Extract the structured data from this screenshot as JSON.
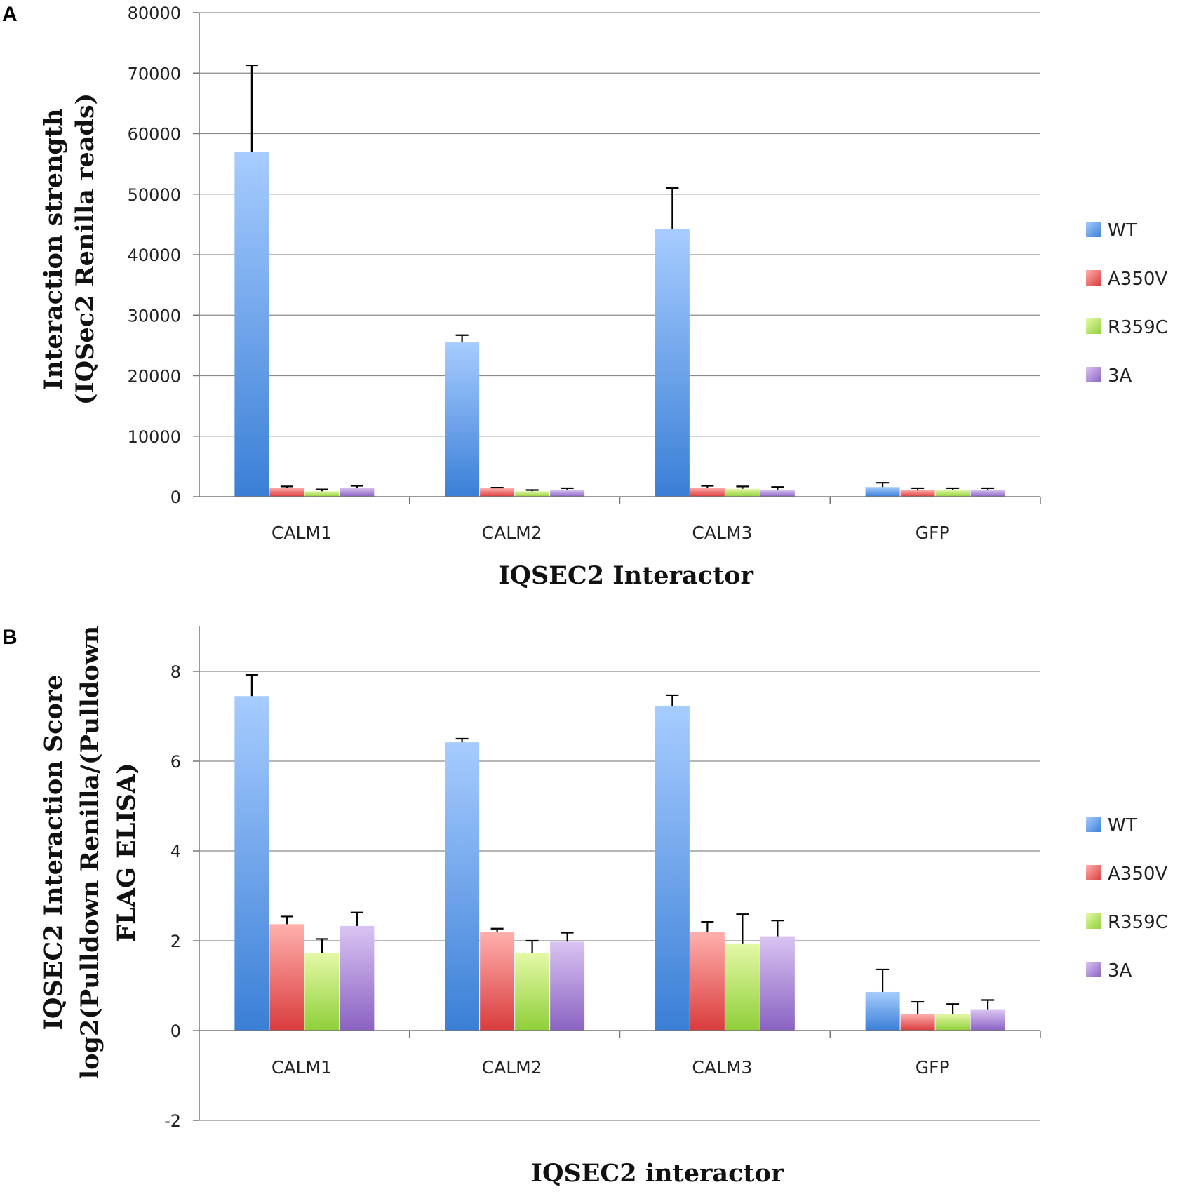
{
  "colors": {
    "WT": [
      "#a7ccff",
      "#3a7fd6"
    ],
    "A350V": [
      "#ffb0ad",
      "#d93c3c"
    ],
    "R359C": [
      "#e4f9a6",
      "#8fcf3a"
    ],
    "3A": [
      "#d9c4f2",
      "#8a62c2"
    ],
    "grid": "#8c8c8c"
  },
  "chart_data": [
    {
      "panel": "A",
      "type": "bar",
      "xlabel": "IQSEC2 Interactor",
      "ylabel_lines": [
        "Interaction strength",
        "(IQSec2 Renilla reads)"
      ],
      "ylim": [
        0,
        80000
      ],
      "yticks": [
        0,
        10000,
        20000,
        30000,
        40000,
        50000,
        60000,
        70000,
        80000
      ],
      "categories": [
        "CALM1",
        "CALM2",
        "CALM3",
        "GFP"
      ],
      "series": [
        {
          "name": "WT",
          "values": [
            57000,
            25500,
            44200,
            1600
          ],
          "errors": [
            14300,
            1200,
            6800,
            700
          ]
        },
        {
          "name": "A350V",
          "values": [
            1500,
            1400,
            1500,
            1100
          ],
          "errors": [
            200,
            100,
            300,
            300
          ]
        },
        {
          "name": "R359C",
          "values": [
            900,
            900,
            1300,
            1100
          ],
          "errors": [
            300,
            200,
            400,
            300
          ]
        },
        {
          "name": "3A",
          "values": [
            1500,
            1100,
            1100,
            1100
          ],
          "errors": [
            300,
            300,
            500,
            300
          ]
        }
      ],
      "legend": [
        "WT",
        "A350V",
        "R359C",
        "3A"
      ],
      "legend_position": "right"
    },
    {
      "panel": "B",
      "type": "bar",
      "xlabel": "IQSEC2 interactor",
      "ylabel_lines": [
        "IQSEC2 Interaction Score",
        "log2(Pulldown Renilla/(Pulldown",
        "FLAG ELISA)"
      ],
      "ylim": [
        -2,
        9
      ],
      "yticks": [
        -2,
        0,
        2,
        4,
        6,
        8
      ],
      "categories": [
        "CALM1",
        "CALM2",
        "CALM3",
        "GFP"
      ],
      "series": [
        {
          "name": "WT",
          "values": [
            7.45,
            6.42,
            7.22,
            0.86
          ],
          "errors": [
            0.47,
            0.08,
            0.25,
            0.5
          ]
        },
        {
          "name": "A350V",
          "values": [
            2.37,
            2.2,
            2.2,
            0.37
          ],
          "errors": [
            0.17,
            0.07,
            0.22,
            0.27
          ]
        },
        {
          "name": "R359C",
          "values": [
            1.72,
            1.72,
            1.94,
            0.37
          ],
          "errors": [
            0.32,
            0.28,
            0.65,
            0.22
          ]
        },
        {
          "name": "3A",
          "values": [
            2.33,
            1.98,
            2.1,
            0.46
          ],
          "errors": [
            0.3,
            0.2,
            0.35,
            0.22
          ]
        }
      ],
      "legend": [
        "WT",
        "A350V",
        "R359C",
        "3A"
      ],
      "legend_position": "right"
    }
  ]
}
